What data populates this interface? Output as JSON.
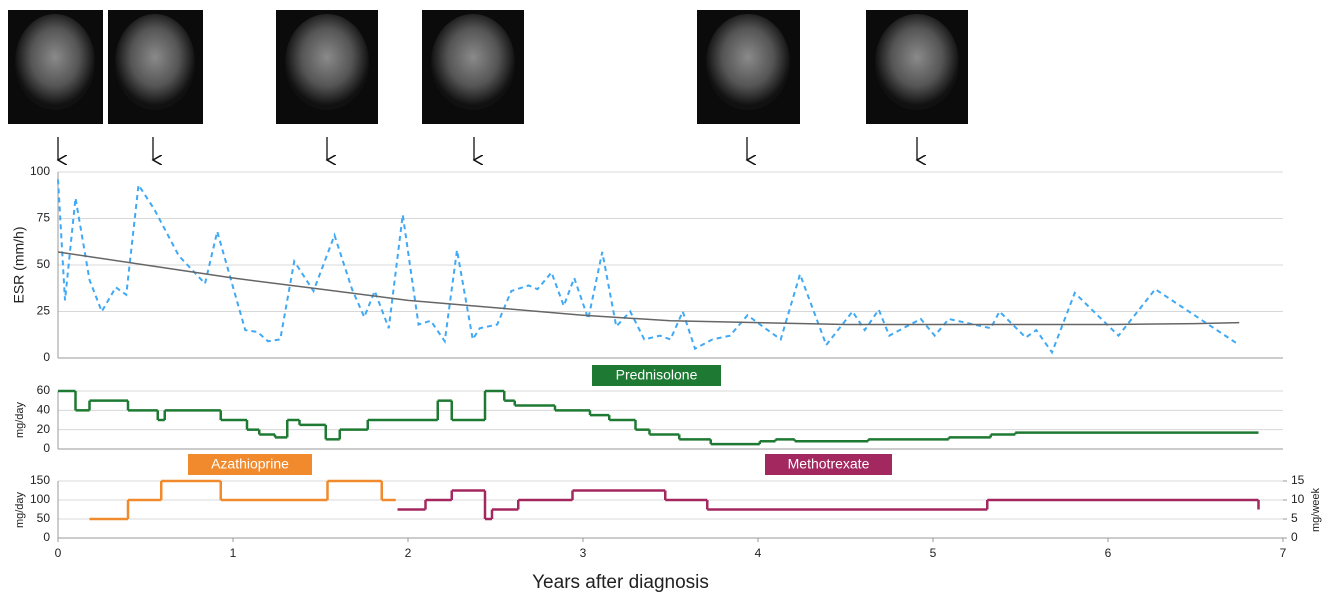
{
  "chart_data": [
    {
      "type": "line",
      "ylabel": "ESR (mm/h)",
      "xlim": [
        0,
        7
      ],
      "ylim": [
        0,
        100
      ],
      "yticks": [
        0,
        25,
        50,
        75,
        100
      ],
      "grid": true,
      "series": [
        {
          "color": "#3fa9f5",
          "dash": true,
          "x": [
            0,
            0.04,
            0.1,
            0.18,
            0.25,
            0.33,
            0.39,
            0.46,
            0.55,
            0.69,
            0.84,
            0.91,
            1.07,
            1.14,
            1.2,
            1.27,
            1.35,
            1.46,
            1.58,
            1.68,
            1.75,
            1.81,
            1.89,
            1.97,
            2.06,
            2.13,
            2.21,
            2.28,
            2.37,
            2.41,
            2.51,
            2.59,
            2.69,
            2.74,
            2.82,
            2.89,
            2.95,
            3.03,
            3.11,
            3.19,
            3.27,
            3.35,
            3.44,
            3.5,
            3.57,
            3.64,
            3.74,
            3.84,
            3.94,
            4.04,
            4.13,
            4.24,
            4.39,
            4.54,
            4.61,
            4.69,
            4.75,
            4.93,
            5.01,
            5.09,
            5.33,
            5.38,
            5.53,
            5.59,
            5.68,
            5.81,
            6.06,
            6.27,
            6.75
          ],
          "values": [
            96,
            31,
            86,
            42,
            25,
            38,
            34,
            93,
            80,
            55,
            40,
            68,
            15,
            14,
            9,
            10,
            52,
            36,
            66,
            37,
            22,
            36,
            16,
            77,
            18,
            20,
            9,
            58,
            10,
            16,
            18,
            36,
            39,
            37,
            46,
            28,
            43,
            21,
            57,
            17,
            25,
            10,
            12,
            10,
            25,
            5,
            10,
            12,
            23,
            16,
            10,
            45,
            7,
            25,
            15,
            26,
            12,
            21,
            12,
            21,
            16,
            25,
            11,
            15,
            3,
            35,
            12,
            37,
            7
          ]
        },
        {
          "color": "#666666",
          "dash": false,
          "x": [
            0,
            0.5,
            1,
            1.5,
            2,
            2.5,
            3,
            3.5,
            4,
            4.5,
            5,
            5.5,
            6,
            6.5,
            6.75
          ],
          "values": [
            57,
            50,
            43,
            37,
            31,
            27,
            23,
            20,
            19,
            18,
            18,
            18,
            18,
            18.5,
            19
          ]
        }
      ]
    },
    {
      "type": "step",
      "ylabel": "mg/day",
      "xlim": [
        0,
        7
      ],
      "ylim": [
        0,
        60
      ],
      "yticks": [
        0,
        20,
        40,
        60
      ],
      "grid": true,
      "series": [
        {
          "name": "Prednisolone",
          "color": "#1e7a32",
          "x": [
            0,
            0.1,
            0.18,
            0.4,
            0.57,
            0.61,
            0.93,
            1.08,
            1.15,
            1.24,
            1.31,
            1.38,
            1.53,
            1.61,
            1.77,
            2.17,
            2.25,
            2.44,
            2.55,
            2.61,
            2.84,
            3.04,
            3.15,
            3.3,
            3.38,
            3.55,
            3.73,
            4.01,
            4.1,
            4.21,
            4.63,
            5.09,
            5.33,
            5.47,
            6.86
          ],
          "values": [
            60,
            40,
            50,
            40,
            30,
            40,
            30,
            20,
            15,
            12,
            30,
            25,
            10,
            20,
            30,
            50,
            30,
            60,
            50,
            45,
            40,
            35,
            30,
            20,
            15,
            10,
            5,
            8,
            10,
            8,
            10,
            12,
            15,
            17,
            17
          ]
        }
      ]
    },
    {
      "type": "step",
      "ylabel": "mg/day",
      "y2label": "mg/week",
      "xlabel": "Years after diagnosis",
      "xlim": [
        0,
        7
      ],
      "xticks": [
        0,
        1,
        2,
        3,
        4,
        5,
        6,
        7
      ],
      "ylim": [
        0,
        150
      ],
      "yticks": [
        0,
        50,
        100,
        150
      ],
      "y2lim": [
        0,
        15
      ],
      "y2ticks": [
        0,
        5,
        10,
        15
      ],
      "grid": true,
      "series": [
        {
          "name": "Azathioprine",
          "color": "#f08a2c",
          "x": [
            0.18,
            0.4,
            0.59,
            0.93,
            1.54,
            1.85,
            1.93
          ],
          "values": [
            50,
            100,
            150,
            100,
            150,
            100,
            100
          ]
        },
        {
          "name": "Methotrexate",
          "color": "#a3285f",
          "axis": "y2",
          "x": [
            1.94,
            2.1,
            2.25,
            2.44,
            2.48,
            2.63,
            2.94,
            3.47,
            3.71,
            5.31,
            6.86
          ],
          "values": [
            7.5,
            10,
            12.5,
            5,
            7.5,
            10,
            12.5,
            10,
            7.5,
            10,
            7.5
          ]
        }
      ]
    }
  ]
}
